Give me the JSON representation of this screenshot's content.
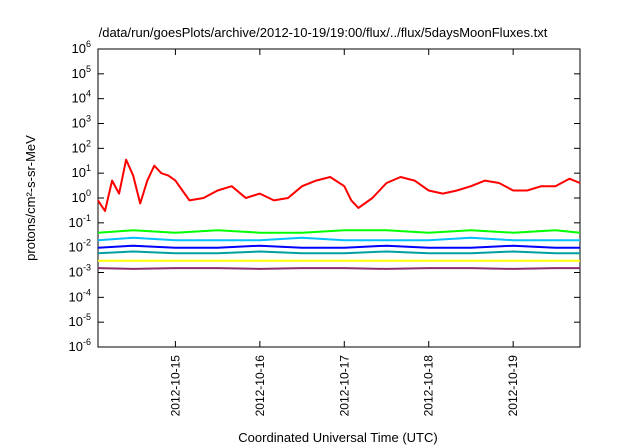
{
  "chart_data": {
    "type": "line",
    "title": "/data/run/goesPlots/archive/2012-10-19/19:00/flux/../flux/5daysMoonFluxes.txt",
    "xlabel": "Coordinated Universal Time (UTC)",
    "ylabel": "protons/cm²-s-sr-MeV",
    "y_scale": "log",
    "ylim": [
      1e-06,
      1000000.0
    ],
    "xlim": [
      "2012-10-14 02:00",
      "2012-10-19 19:00"
    ],
    "y_ticks": [
      {
        "base": "10",
        "exp": "-6"
      },
      {
        "base": "10",
        "exp": "-5"
      },
      {
        "base": "10",
        "exp": "-4"
      },
      {
        "base": "10",
        "exp": "-3"
      },
      {
        "base": "10",
        "exp": "-2"
      },
      {
        "base": "10",
        "exp": "-1"
      },
      {
        "base": "10",
        "exp": "0"
      },
      {
        "base": "10",
        "exp": "1"
      },
      {
        "base": "10",
        "exp": "2"
      },
      {
        "base": "10",
        "exp": "3"
      },
      {
        "base": "10",
        "exp": "4"
      },
      {
        "base": "10",
        "exp": "5"
      },
      {
        "base": "10",
        "exp": "6"
      }
    ],
    "x_ticks": [
      "2012-10-15",
      "2012-10-16",
      "2012-10-17",
      "2012-10-18",
      "2012-10-19"
    ],
    "grid": false,
    "legend": "none",
    "series": [
      {
        "color": "#ff0000",
        "x": [
          "2012-10-14 02:00",
          "2012-10-14 04:00",
          "2012-10-14 06:00",
          "2012-10-14 08:00",
          "2012-10-14 10:00",
          "2012-10-14 12:00",
          "2012-10-14 14:00",
          "2012-10-14 16:00",
          "2012-10-14 18:00",
          "2012-10-14 20:00",
          "2012-10-14 22:00",
          "2012-10-15 00:00",
          "2012-10-15 02:00",
          "2012-10-15 04:00",
          "2012-10-15 08:00",
          "2012-10-15 12:00",
          "2012-10-15 16:00",
          "2012-10-15 20:00",
          "2012-10-16 00:00",
          "2012-10-16 04:00",
          "2012-10-16 08:00",
          "2012-10-16 12:00",
          "2012-10-16 16:00",
          "2012-10-16 20:00",
          "2012-10-17 00:00",
          "2012-10-17 02:00",
          "2012-10-17 04:00",
          "2012-10-17 08:00",
          "2012-10-17 12:00",
          "2012-10-17 16:00",
          "2012-10-17 20:00",
          "2012-10-18 00:00",
          "2012-10-18 04:00",
          "2012-10-18 08:00",
          "2012-10-18 12:00",
          "2012-10-18 16:00",
          "2012-10-18 20:00",
          "2012-10-19 00:00",
          "2012-10-19 04:00",
          "2012-10-19 08:00",
          "2012-10-19 12:00",
          "2012-10-19 16:00",
          "2012-10-19 19:00"
        ],
        "y": [
          0.8,
          0.3,
          5,
          1.5,
          35,
          8,
          0.6,
          5,
          20,
          10,
          8,
          5,
          2,
          0.8,
          1,
          2,
          3,
          1,
          1.5,
          0.8,
          1,
          3,
          5,
          7,
          3,
          0.8,
          0.4,
          1,
          4,
          7,
          5,
          2,
          1.5,
          2,
          3,
          5,
          4,
          2,
          2,
          3,
          3,
          6,
          4
        ]
      },
      {
        "color": "#00ff00",
        "x": [
          "2012-10-14 02:00",
          "2012-10-14 12:00",
          "2012-10-15 00:00",
          "2012-10-15 12:00",
          "2012-10-16 00:00",
          "2012-10-16 12:00",
          "2012-10-17 00:00",
          "2012-10-17 12:00",
          "2012-10-18 00:00",
          "2012-10-18 12:00",
          "2012-10-19 00:00",
          "2012-10-19 12:00",
          "2012-10-19 19:00"
        ],
        "y": [
          0.04,
          0.05,
          0.04,
          0.05,
          0.04,
          0.04,
          0.05,
          0.05,
          0.04,
          0.05,
          0.04,
          0.05,
          0.04
        ]
      },
      {
        "color": "#00bfff",
        "x": [
          "2012-10-14 02:00",
          "2012-10-14 12:00",
          "2012-10-15 00:00",
          "2012-10-15 12:00",
          "2012-10-16 00:00",
          "2012-10-16 12:00",
          "2012-10-17 00:00",
          "2012-10-17 12:00",
          "2012-10-18 00:00",
          "2012-10-18 12:00",
          "2012-10-19 00:00",
          "2012-10-19 12:00",
          "2012-10-19 19:00"
        ],
        "y": [
          0.02,
          0.025,
          0.02,
          0.02,
          0.02,
          0.025,
          0.02,
          0.02,
          0.02,
          0.025,
          0.02,
          0.02,
          0.02
        ]
      },
      {
        "color": "#0000ff",
        "x": [
          "2012-10-14 02:00",
          "2012-10-14 12:00",
          "2012-10-15 00:00",
          "2012-10-15 12:00",
          "2012-10-16 00:00",
          "2012-10-16 12:00",
          "2012-10-17 00:00",
          "2012-10-17 12:00",
          "2012-10-18 00:00",
          "2012-10-18 12:00",
          "2012-10-19 00:00",
          "2012-10-19 12:00",
          "2012-10-19 19:00"
        ],
        "y": [
          0.01,
          0.012,
          0.01,
          0.01,
          0.012,
          0.01,
          0.01,
          0.012,
          0.01,
          0.01,
          0.012,
          0.01,
          0.01
        ]
      },
      {
        "color": "#00a0a0",
        "x": [
          "2012-10-14 02:00",
          "2012-10-14 12:00",
          "2012-10-15 00:00",
          "2012-10-15 12:00",
          "2012-10-16 00:00",
          "2012-10-16 12:00",
          "2012-10-17 00:00",
          "2012-10-17 12:00",
          "2012-10-18 00:00",
          "2012-10-18 12:00",
          "2012-10-19 00:00",
          "2012-10-19 12:00",
          "2012-10-19 19:00"
        ],
        "y": [
          0.006,
          0.007,
          0.006,
          0.006,
          0.007,
          0.006,
          0.006,
          0.007,
          0.006,
          0.006,
          0.007,
          0.006,
          0.006
        ]
      },
      {
        "color": "#ffff00",
        "x": [
          "2012-10-14 02:00",
          "2012-10-14 12:00",
          "2012-10-15 00:00",
          "2012-10-15 12:00",
          "2012-10-16 00:00",
          "2012-10-16 12:00",
          "2012-10-17 00:00",
          "2012-10-17 12:00",
          "2012-10-18 00:00",
          "2012-10-18 12:00",
          "2012-10-19 00:00",
          "2012-10-19 12:00",
          "2012-10-19 19:00"
        ],
        "y": [
          0.003,
          0.003,
          0.003,
          0.003,
          0.003,
          0.003,
          0.003,
          0.003,
          0.003,
          0.003,
          0.003,
          0.003,
          0.003
        ]
      },
      {
        "color": "#8b2d6e",
        "x": [
          "2012-10-14 02:00",
          "2012-10-14 12:00",
          "2012-10-15 00:00",
          "2012-10-15 12:00",
          "2012-10-16 00:00",
          "2012-10-16 12:00",
          "2012-10-17 00:00",
          "2012-10-17 12:00",
          "2012-10-18 00:00",
          "2012-10-18 12:00",
          "2012-10-19 00:00",
          "2012-10-19 12:00",
          "2012-10-19 19:00"
        ],
        "y": [
          0.0015,
          0.0014,
          0.0015,
          0.0015,
          0.0014,
          0.0015,
          0.0015,
          0.0014,
          0.0015,
          0.0015,
          0.0014,
          0.0015,
          0.0015
        ]
      }
    ]
  }
}
